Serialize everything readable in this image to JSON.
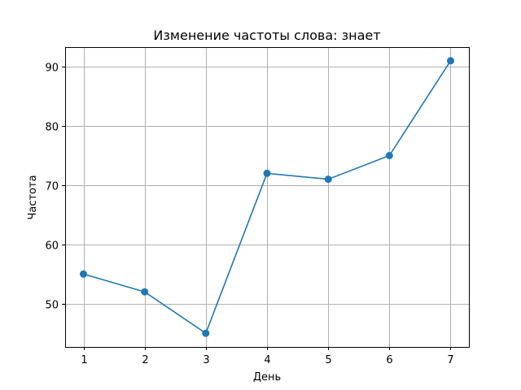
{
  "chart_data": {
    "type": "line",
    "title": "Изменение частоты слова: знает",
    "xlabel": "День",
    "ylabel": "Частота",
    "x": [
      1,
      2,
      3,
      4,
      5,
      6,
      7
    ],
    "series": [
      {
        "values": [
          55,
          52,
          45,
          72,
          71,
          75,
          91
        ]
      }
    ],
    "xticks": [
      1,
      2,
      3,
      4,
      5,
      6,
      7
    ],
    "yticks": [
      50,
      60,
      70,
      80,
      90
    ],
    "xlim": [
      0.7,
      7.3
    ],
    "ylim": [
      42.7,
      93.3
    ],
    "grid": true,
    "colors": {
      "series": "#1f77b4"
    }
  }
}
